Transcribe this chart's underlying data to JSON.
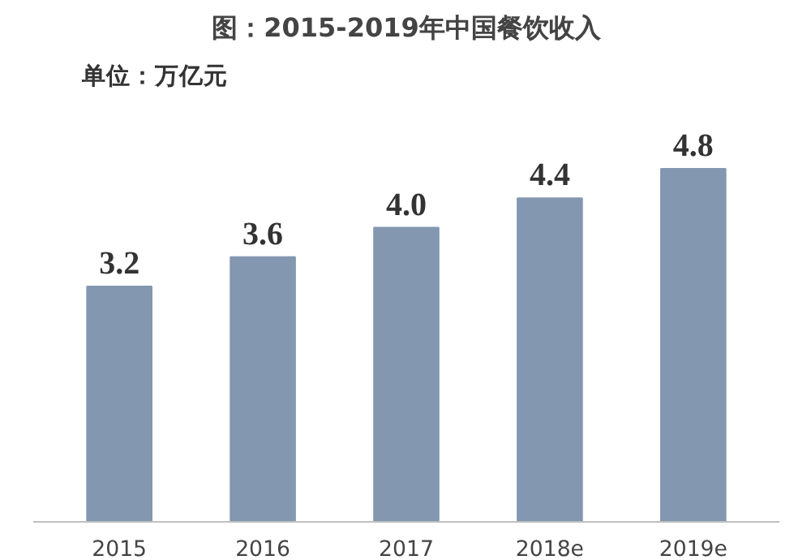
{
  "chart_data": {
    "type": "bar",
    "title": "图：2015-2019年中国餐饮收入",
    "subtitle": "单位：万亿元",
    "categories": [
      "2015",
      "2016",
      "2017",
      "2018e",
      "2019e"
    ],
    "values": [
      3.2,
      3.6,
      4.0,
      4.4,
      4.8
    ],
    "value_labels": [
      "3.2",
      "3.6",
      "4.0",
      "4.4",
      "4.8"
    ],
    "color": "#8497b0"
  }
}
